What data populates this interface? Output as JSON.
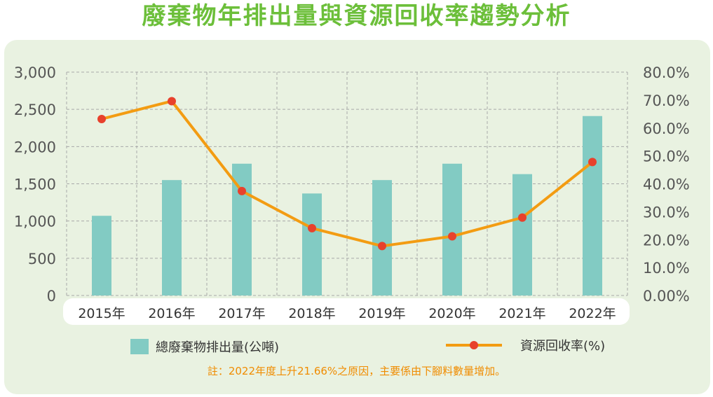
{
  "title": "廢棄物年排出量與資源回收率趨勢分析",
  "note": "註：2022年度上升21.66%之原因，主要係由下腳料數量增加。",
  "colors": {
    "bar": "#82cbc3",
    "line": "#f39c12",
    "point": "#e8412c",
    "title": "#6cbf3a",
    "note": "#f08c00"
  },
  "chart_data": {
    "type": "bar",
    "categories": [
      "2015年",
      "2016年",
      "2017年",
      "2018年",
      "2019年",
      "2020年",
      "2021年",
      "2022年"
    ],
    "series": [
      {
        "name": "總廢棄物排出量(公噸)",
        "type": "bar",
        "axis": "left",
        "values": [
          1070,
          1550,
          1770,
          1370,
          1550,
          1770,
          1630,
          2410
        ]
      },
      {
        "name": "資源回收率(%)",
        "type": "line",
        "axis": "right",
        "values": [
          63.2,
          69.6,
          37.4,
          24.1,
          17.7,
          21.2,
          27.9,
          47.8
        ]
      }
    ],
    "y_left": {
      "lim": [
        0,
        3000
      ],
      "ticks": [
        "0",
        "500",
        "1,000",
        "1,500",
        "2,000",
        "2,500",
        "3,000"
      ]
    },
    "y_right": {
      "lim": [
        0,
        80
      ],
      "ticks": [
        "0.00%",
        "10.0%",
        "20.0%",
        "30.0%",
        "40.0%",
        "50.0%",
        "60.0%",
        "70.0%",
        "80.0%"
      ]
    },
    "grid": true,
    "legend_position": "bottom"
  }
}
